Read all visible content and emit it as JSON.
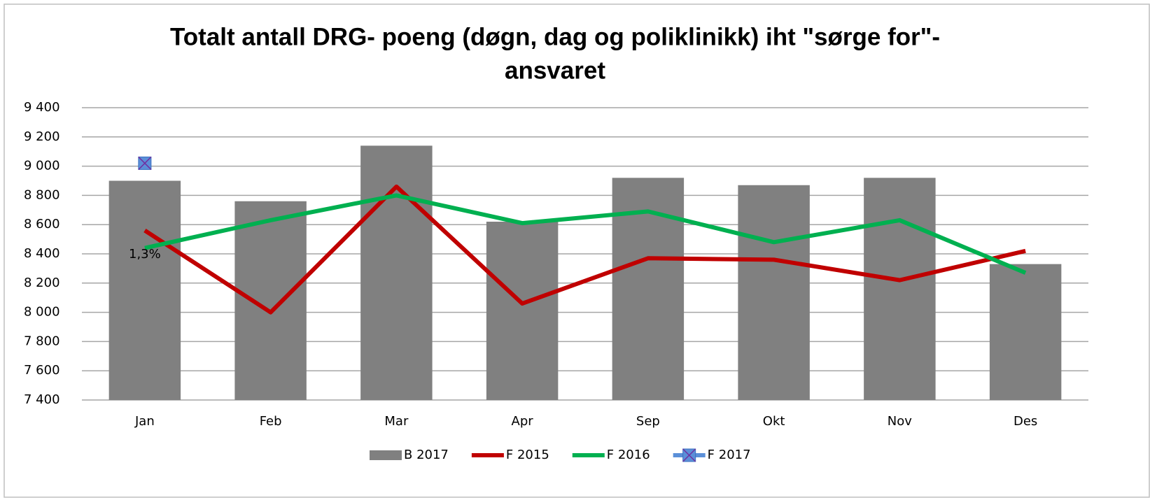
{
  "chart_data": {
    "type": "bar-line",
    "title": [
      "Totalt antall DRG- poeng (døgn, dag og poliklinikk) iht \"sørge for\"-",
      "ansvaret"
    ],
    "categories": [
      "Jan",
      "Feb",
      "Mar",
      "Apr",
      "Sep",
      "Okt",
      "Nov",
      "Des"
    ],
    "series": [
      {
        "name": "B 2017",
        "type": "bar",
        "color": "#808080",
        "values": [
          8900,
          8760,
          9140,
          8620,
          8920,
          8870,
          8920,
          8330
        ]
      },
      {
        "name": "F 2015",
        "type": "line",
        "color": "#c00000",
        "values": [
          8560,
          8000,
          8860,
          8060,
          8370,
          8360,
          8220,
          8420
        ]
      },
      {
        "name": "F 2016",
        "type": "line",
        "color": "#00b050",
        "values": [
          8440,
          8630,
          8800,
          8610,
          8690,
          8480,
          8630,
          8270
        ]
      },
      {
        "name": "F 2017",
        "type": "line",
        "color": "#5b8fd8",
        "marker": "x-square",
        "values": [
          9020,
          null,
          null,
          null,
          null,
          null,
          null,
          null
        ]
      }
    ],
    "annotations": [
      {
        "text": "1,3%",
        "category": "Jan"
      }
    ],
    "ylim": [
      7400,
      9400
    ],
    "yticks": [
      {
        "value": 7400,
        "label": "7 400"
      },
      {
        "value": 7600,
        "label": "7 600"
      },
      {
        "value": 7800,
        "label": "7 800"
      },
      {
        "value": 8000,
        "label": "8 000"
      },
      {
        "value": 8200,
        "label": "8 200"
      },
      {
        "value": 8400,
        "label": "8 400"
      },
      {
        "value": 8600,
        "label": "8 600"
      },
      {
        "value": 8800,
        "label": "8 800"
      },
      {
        "value": 9000,
        "label": "9 000"
      },
      {
        "value": 9200,
        "label": "9 200"
      },
      {
        "value": 9400,
        "label": "9 400"
      }
    ],
    "grid": true,
    "legend": "bottom"
  }
}
